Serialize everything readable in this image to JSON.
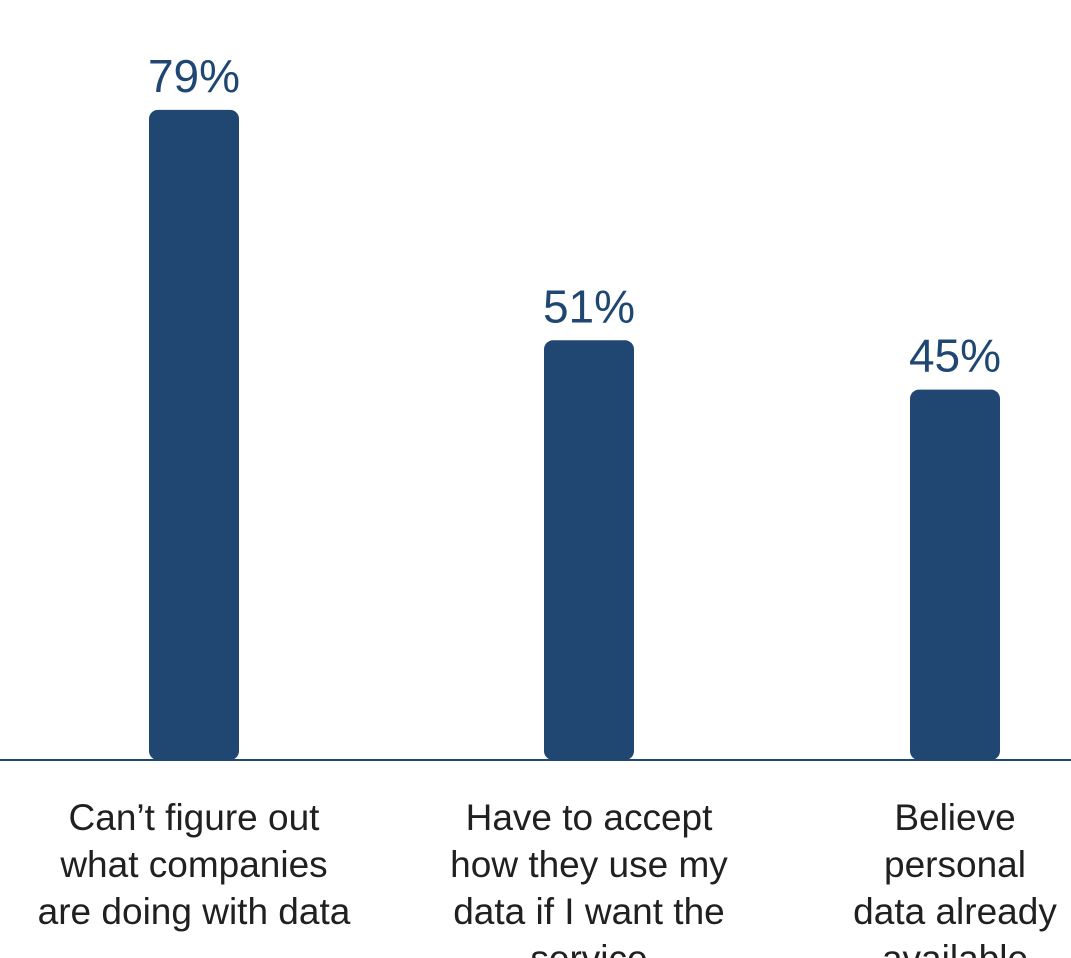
{
  "chart_data": {
    "type": "bar",
    "categories": [
      [
        "Can’t figure out",
        "what companies",
        "are doing with data"
      ],
      [
        "Have to accept",
        "how they use my",
        "data if I want the",
        "service"
      ],
      [
        "Believe",
        "personal",
        "data already",
        "available"
      ]
    ],
    "values": [
      79,
      51,
      45
    ],
    "value_labels": [
      "79%",
      "51%",
      "45%"
    ],
    "ylim": [
      0,
      100
    ],
    "grid": false,
    "legend": "none",
    "colors": {
      "bar": "#1f4771",
      "value_text": "#1f4771",
      "category_text": "#202020",
      "axis": "#1f4771"
    }
  }
}
